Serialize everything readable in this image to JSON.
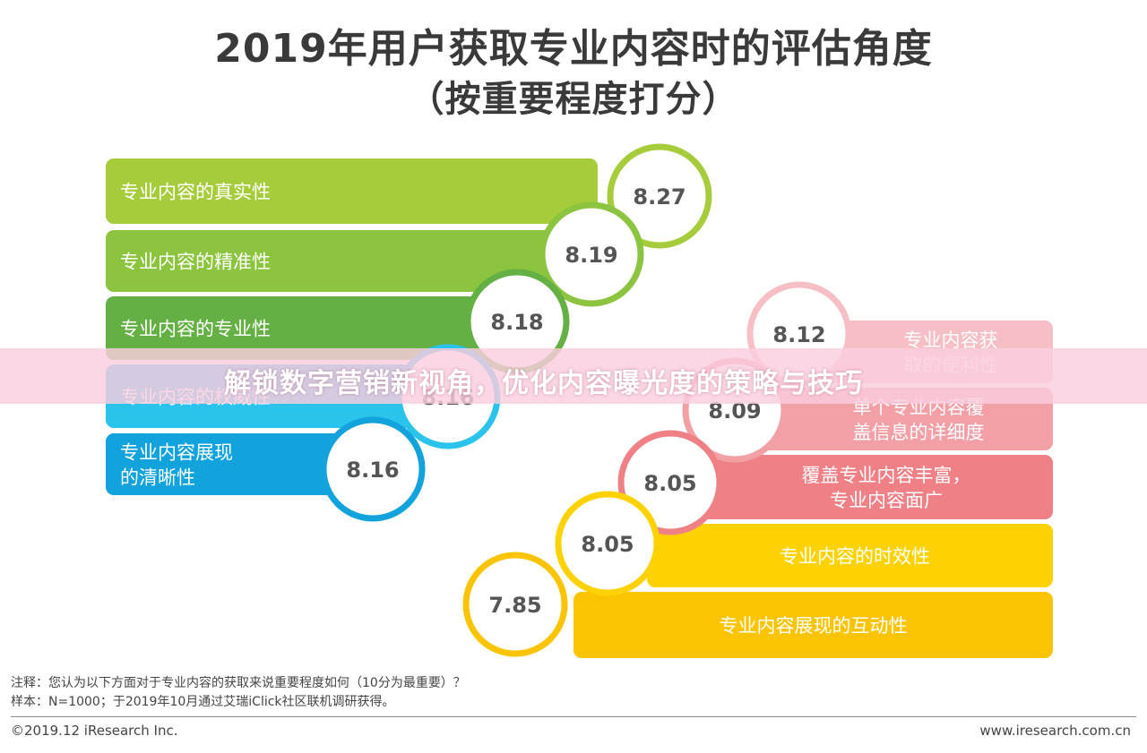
{
  "title_line1": "2019年用户获取专业内容时的评估角度",
  "title_line2": "（按重要程度打分）",
  "chart_data": {
    "type": "bar",
    "title": "2019年用户获取专业内容时的评估角度",
    "subtitle": "（按重要程度打分）",
    "categories": [
      "专业内容的真实性",
      "专业内容的精准性",
      "专业内容的专业性",
      "专业内容的权威性",
      "专业内容展现\n的清晰性",
      "专业内容获\n取的便利性",
      "单个专业内容覆\n盖信息的详细度",
      "覆盖专业内容丰富，\n专业内容面广",
      "专业内容的时效性",
      "专业内容展现的互动性"
    ],
    "values": [
      8.27,
      8.19,
      8.18,
      8.16,
      8.16,
      8.12,
      8.09,
      8.05,
      8.05,
      7.85
    ],
    "value_labels": [
      "8.27",
      "8.19",
      "8.18",
      "8.16",
      "8.16",
      "8.12",
      "8.09",
      "8.05",
      "8.05",
      "7.85"
    ],
    "colors": [
      "#a6cc3c",
      "#8cc43f",
      "#64b045",
      "#29c3ec",
      "#12a3dd",
      "#f6bfc5",
      "#f2a0a6",
      "#ee8086",
      "#fdd200",
      "#fbc402"
    ],
    "xlabel": "",
    "ylabel": ""
  },
  "notes": {
    "line1": "注释：您认为以下方面对于专业内容的获取来说重要程度如何（10分为最重要）？",
    "line2": "样本：N=1000；于2019年10月通过艾瑞iClick社区联机调研获得。"
  },
  "footer": {
    "copyright": "©2019.12 iResearch Inc.",
    "website": "www.iresearch.com.cn"
  },
  "banner": {
    "text": "解锁数字营销新视角，优化内容曝光度的策略与技巧"
  }
}
